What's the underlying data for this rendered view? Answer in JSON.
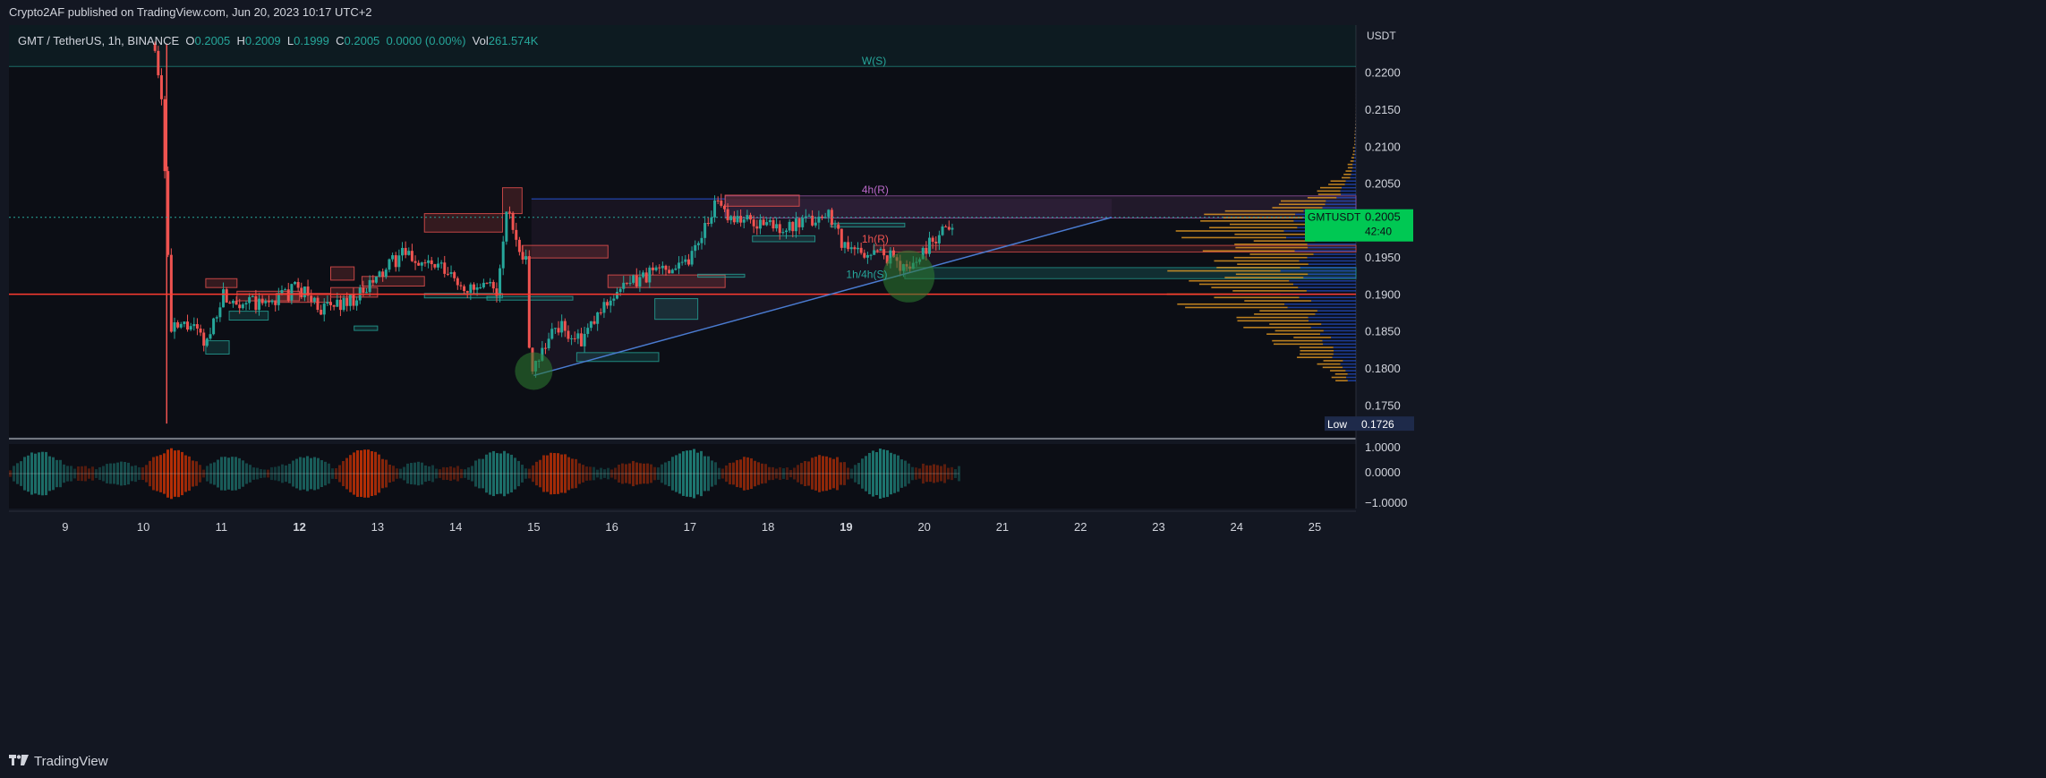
{
  "header": {
    "published_by": "Crypto2AF published on TradingView.com, Jun 20, 2023 10:17 UTC+2"
  },
  "legend": {
    "symbol": "GMT / TetherUS, 1h, BINANCE",
    "open_label": "O",
    "open": "0.2005",
    "high_label": "H",
    "high": "0.2009",
    "low_label": "L",
    "low": "0.1999",
    "close_label": "C",
    "close": "0.2005",
    "change": "0.0000 (0.00%)",
    "vol_label": "Vol",
    "vol": "261.574K"
  },
  "price_axis": {
    "currency": "USDT",
    "ticks": [
      "0.2200",
      "0.2150",
      "0.2100",
      "0.2050",
      "0.1950",
      "0.1900",
      "0.1850",
      "0.1800",
      "0.1750"
    ],
    "current_symbol": "GMTUSDT",
    "current_price": "0.2005",
    "countdown": "42:40",
    "low_label": "Low",
    "low_value": "0.1726"
  },
  "oscillator_axis": {
    "ticks": [
      "1.0000",
      "0.0000",
      "−1.0000"
    ]
  },
  "time_axis": {
    "ticks": [
      "9",
      "10",
      "11",
      "12",
      "13",
      "14",
      "15",
      "16",
      "17",
      "18",
      "19",
      "20",
      "21",
      "22",
      "23",
      "24",
      "25"
    ]
  },
  "annotations": {
    "weekly": "W(S)",
    "four_hour_resistance": "4h(R)",
    "one_hour_resistance": "1h(R)",
    "support_zone": "1h/4h(S)"
  },
  "footer": {
    "brand": "TradingView"
  },
  "colors": {
    "background": "#131722",
    "up": "#26a69a",
    "down": "#ef5350",
    "accent_green": "#00e676",
    "resistance_purple": "#ba68c8",
    "horizontal_red": "#ff3b30",
    "trendline_blue": "#2962ff"
  },
  "chart_data": {
    "type": "candlestick",
    "symbol": "GMT / TetherUS",
    "interval": "1h",
    "exchange": "BINANCE",
    "y_unit": "USDT",
    "ylim": [
      0.1726,
      0.226
    ],
    "xlim_days": [
      8.3,
      25.5
    ],
    "approx_close_path": [
      {
        "day": 10.15,
        "price": 0.224
      },
      {
        "day": 10.25,
        "price": 0.215
      },
      {
        "day": 10.35,
        "price": 0.185
      },
      {
        "day": 10.6,
        "price": 0.186
      },
      {
        "day": 10.8,
        "price": 0.183
      },
      {
        "day": 11.0,
        "price": 0.19
      },
      {
        "day": 11.5,
        "price": 0.1885
      },
      {
        "day": 12.0,
        "price": 0.191
      },
      {
        "day": 12.3,
        "price": 0.188
      },
      {
        "day": 12.8,
        "price": 0.19
      },
      {
        "day": 13.3,
        "price": 0.1955
      },
      {
        "day": 13.8,
        "price": 0.1935
      },
      {
        "day": 14.2,
        "price": 0.1905
      },
      {
        "day": 14.55,
        "price": 0.191
      },
      {
        "day": 14.65,
        "price": 0.2015
      },
      {
        "day": 14.9,
        "price": 0.1945
      },
      {
        "day": 14.95,
        "price": 0.18
      },
      {
        "day": 15.3,
        "price": 0.186
      },
      {
        "day": 15.6,
        "price": 0.1835
      },
      {
        "day": 16.0,
        "price": 0.19
      },
      {
        "day": 16.5,
        "price": 0.193
      },
      {
        "day": 17.0,
        "price": 0.195
      },
      {
        "day": 17.3,
        "price": 0.202
      },
      {
        "day": 17.7,
        "price": 0.2
      },
      {
        "day": 18.3,
        "price": 0.199
      },
      {
        "day": 18.8,
        "price": 0.201
      },
      {
        "day": 19.0,
        "price": 0.196
      },
      {
        "day": 19.5,
        "price": 0.1955
      },
      {
        "day": 19.8,
        "price": 0.1935
      },
      {
        "day": 20.1,
        "price": 0.1975
      },
      {
        "day": 20.4,
        "price": 0.2005
      }
    ],
    "levels": [
      {
        "name": "W(S)",
        "price": 0.2209
      },
      {
        "name": "4h(R)",
        "price_top": 0.2034,
        "price_bottom": 0.2004
      },
      {
        "name": "1h(R)",
        "price_top": 0.1967,
        "price_bottom": 0.1958
      },
      {
        "name": "1h/4h(S)",
        "price_top": 0.1937,
        "price_bottom": 0.1922
      },
      {
        "name": "horizontal",
        "price": 0.1901
      }
    ],
    "trendline": [
      {
        "day": 15.0,
        "price": 0.1791
      },
      {
        "day": 22.4,
        "price": 0.2005
      }
    ],
    "oscillator_range": [
      -1,
      1
    ]
  }
}
